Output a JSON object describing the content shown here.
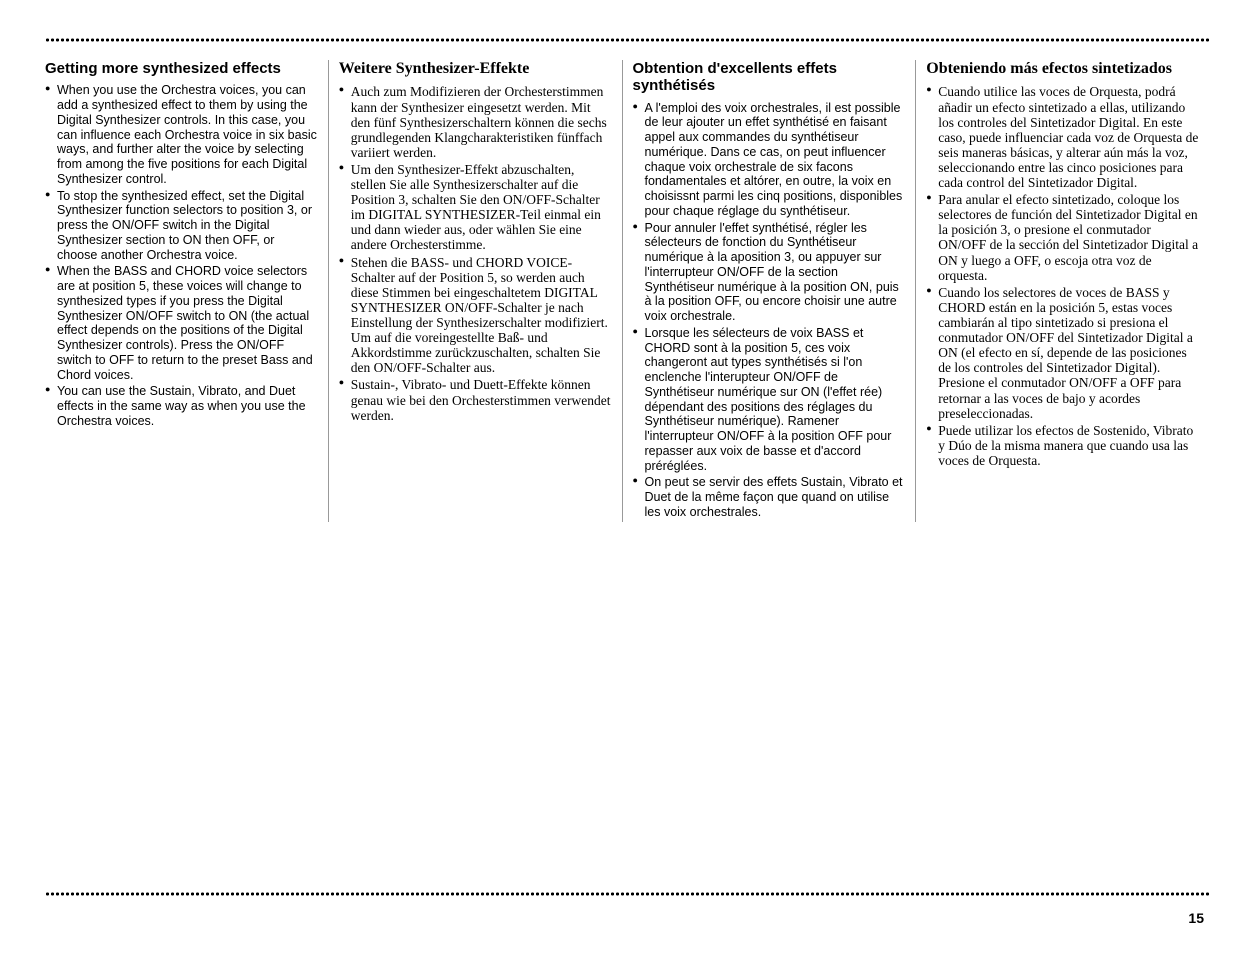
{
  "page_number": "15",
  "columns": [
    {
      "title": "Getting more synthesized effects",
      "title_class": "",
      "list_class": "",
      "items": [
        "When you use the Orchestra voices, you can add a synthesized effect to them by using the Digital Synthesizer controls. In this case, you can influence each Orchestra voice in six basic ways, and further alter the voice by selecting from among the five positions for each Digital Synthesizer control.",
        "To stop the synthesized effect, set the Digital Synthesizer function selectors to position 3, or press the ON/OFF switch in the Digital Synthesizer section to ON then OFF, or choose another Orchestra voice.",
        "When the BASS and CHORD voice selectors are at position 5, these voices will change to synthesized types if you press the Digital Synthesizer ON/OFF switch to ON (the actual effect depends on the positions of the Digital Synthesizer controls). Press the ON/OFF switch to OFF to return to the preset Bass and Chord voices.",
        "You can use the Sustain, Vibrato, and Duet effects in the same way as when you use the Orchestra voices."
      ]
    },
    {
      "title": "Weitere Synthesizer-Effekte",
      "title_class": "serif",
      "list_class": "serif-text",
      "items": [
        "Auch zum Modifizieren der Orchesterstimmen kann der Synthesizer eingesetzt werden. Mit den fünf Synthesizerschaltern können die sechs grundlegenden Klangcharakteristiken fünffach variiert werden.",
        "Um den Synthesizer-Effekt abzuschalten, stellen Sie alle Synthesizerschalter auf die Position 3, schalten Sie den ON/OFF-Schalter im DIGITAL SYNTHESIZER-Teil einmal ein und dann wieder aus, oder wählen Sie eine andere Orchesterstimme.",
        "Stehen die BASS- und CHORD VOICE-Schalter auf der Position 5, so werden auch diese Stimmen bei eingeschaltetem DIGITAL SYNTHESIZER ON/OFF-Schalter je nach Einstellung der Synthesizerschalter modifiziert. Um auf die voreingestellte Baß- und Akkordstimme zurückzuschalten, schalten Sie den ON/OFF-Schalter aus.",
        "Sustain-, Vibrato- und Duett-Effekte können genau wie bei den Orchesterstimmen verwendet werden."
      ]
    },
    {
      "title": "Obtention d'excellents effets synthétisés",
      "title_class": "",
      "list_class": "",
      "items": [
        "A l'emploi des voix orchestrales, il est possible de leur ajouter un effet synthétisé en faisant appel aux commandes du synthétiseur numérique. Dans ce cas, on peut influencer chaque voix orchestrale de six facons fondamentales et altórer, en outre, la voix en choisissnt parmi les cinq positions, disponibles pour chaque réglage du synthétiseur.",
        "Pour annuler l'effet synthétisé, régler les sélecteurs de fonction du Synthétiseur numérique à la aposition 3, ou appuyer sur l'interrupteur ON/OFF de la section Synthétiseur numérique à la position ON, puis à la position OFF, ou encore choisir une autre voix orchestrale.",
        "Lorsque les sélecteurs de voix BASS et CHORD sont à la position 5, ces voix changeront aut types synthétisés si l'on enclenche l'interupteur ON/OFF de Synthétiseur numérique sur ON (l'effet rée) dépendant des positions des réglages du Synthétiseur numérique). Ramener l'interrupteur ON/OFF à la position OFF pour repasser aux voix de basse et d'accord préréglées.",
        "On peut se servir des effets Sustain, Vibrato et Duet de la même façon que quand on utilise les voix orchestrales."
      ]
    },
    {
      "title": "Obteniendo más efectos sintetizados",
      "title_class": "serif",
      "list_class": "serif-text",
      "items": [
        "Cuando utilice las voces de Orquesta, podrá añadir un efecto sintetizado a ellas, utilizando los controles del Sintetizador Digital. En este caso, puede influenciar cada voz de Orquesta de seis maneras básicas, y alterar aún más la voz, seleccionando entre las cinco posiciones para cada control del Sintetizador Digital.",
        "Para anular el efecto sintetizado, coloque los selectores de función del Sintetizador Digital en la posición 3, o presione el conmutador ON/OFF de la sección del Sintetizador Digital a ON y luego a OFF, o escoja otra voz de orquesta.",
        "Cuando los selectores de voces de BASS y CHORD están en la posición 5, estas voces cambiarán al tipo sintetizado si presiona el conmutador ON/OFF del Sintetizador Digital a ON (el efecto en sí, depende de las posiciones de los controles del Sintetizador Digital). Presione el conmutador ON/OFF a OFF para retornar a las voces de bajo y acordes preseleccionadas.",
        "Puede utilizar los efectos de Sostenido, Vibrato y Dúo de la misma manera que cuando usa las voces de Orquesta."
      ]
    }
  ]
}
